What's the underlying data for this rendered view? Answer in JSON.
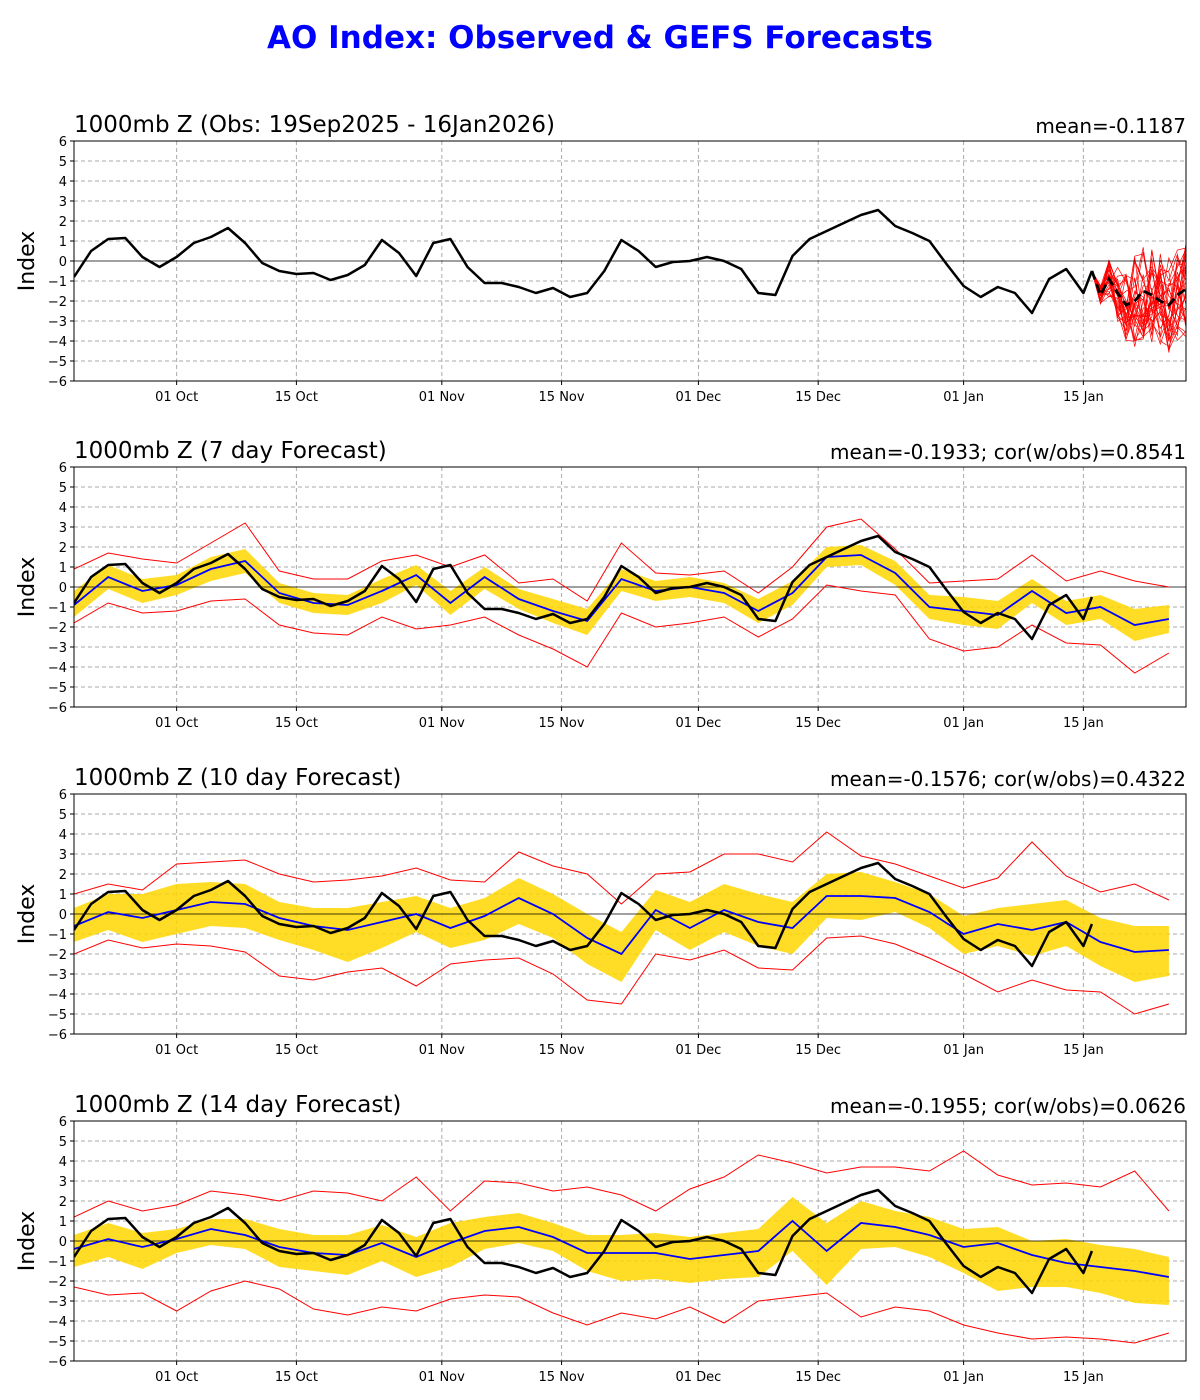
{
  "title": "AO Index: Observed & GEFS Forecasts",
  "colors": {
    "title": "#0000ff",
    "observed": "#000000",
    "ensemble_mean": "#0000ff",
    "members": "#ff0000",
    "spread": "#ffd700",
    "grid": "#aaaaaa"
  },
  "chart_data": [
    {
      "type": "line",
      "title": "1000mb Z (Obs: 19Sep2025 - 16Jan2026)",
      "stats": "mean=-0.1187",
      "ylabel": "Index",
      "ylim": [
        -6,
        6
      ],
      "yticks": [
        -6,
        -5,
        -4,
        -3,
        -2,
        -1,
        0,
        1,
        2,
        3,
        4,
        5,
        6
      ],
      "xlim": [
        "2025-09-19",
        "2026-01-27"
      ],
      "xticks": [
        "01 Oct",
        "15 Oct",
        "01 Nov",
        "15 Nov",
        "01 Dec",
        "15 Dec",
        "01 Jan",
        "15 Jan"
      ],
      "grid": true,
      "series": [
        {
          "role": "observed",
          "x": [
            "2025-09-19",
            "2025-09-21",
            "2025-09-23",
            "2025-09-25",
            "2025-09-27",
            "2025-09-29",
            "2025-10-01",
            "2025-10-03",
            "2025-10-05",
            "2025-10-07",
            "2025-10-09",
            "2025-10-11",
            "2025-10-13",
            "2025-10-15",
            "2025-10-17",
            "2025-10-19",
            "2025-10-21",
            "2025-10-23",
            "2025-10-25",
            "2025-10-27",
            "2025-10-29",
            "2025-10-31",
            "2025-11-02",
            "2025-11-04",
            "2025-11-06",
            "2025-11-08",
            "2025-11-10",
            "2025-11-12",
            "2025-11-14",
            "2025-11-16",
            "2025-11-18",
            "2025-11-20",
            "2025-11-22",
            "2025-11-24",
            "2025-11-26",
            "2025-11-28",
            "2025-11-30",
            "2025-12-02",
            "2025-12-04",
            "2025-12-06",
            "2025-12-08",
            "2025-12-10",
            "2025-12-12",
            "2025-12-14",
            "2025-12-16",
            "2025-12-18",
            "2025-12-20",
            "2025-12-22",
            "2025-12-24",
            "2025-12-26",
            "2025-12-28",
            "2025-12-30",
            "2026-01-01",
            "2026-01-03",
            "2026-01-05",
            "2026-01-07",
            "2026-01-09",
            "2026-01-11",
            "2026-01-13",
            "2026-01-15",
            "2026-01-16"
          ],
          "y": [
            -0.8,
            0.5,
            1.1,
            1.15,
            0.2,
            -0.3,
            0.2,
            0.9,
            1.2,
            1.65,
            0.9,
            -0.1,
            -0.5,
            -0.65,
            -0.6,
            -0.95,
            -0.7,
            -0.2,
            1.05,
            0.4,
            -0.75,
            0.9,
            1.1,
            -0.3,
            -1.1,
            -1.1,
            -1.3,
            -1.6,
            -1.35,
            -1.8,
            -1.6,
            -0.5,
            1.05,
            0.5,
            -0.3,
            -0.05,
            0.0,
            0.2,
            0.0,
            -0.4,
            -1.6,
            -1.7,
            0.25,
            1.1,
            1.5,
            1.9,
            2.3,
            2.55,
            1.75,
            1.4,
            1.0,
            -0.15,
            -1.25,
            -1.8,
            -1.3,
            -1.6,
            -2.6,
            -0.9,
            -0.4,
            -1.6,
            -0.5
          ]
        },
        {
          "role": "forecast-mean",
          "x": [
            "2026-01-16",
            "2026-01-17",
            "2026-01-18",
            "2026-01-19",
            "2026-01-20",
            "2026-01-21",
            "2026-01-22",
            "2026-01-23",
            "2026-01-24",
            "2026-01-25",
            "2026-01-26",
            "2026-01-27"
          ],
          "y": [
            -0.5,
            -1.7,
            -0.9,
            -1.6,
            -2.2,
            -2.0,
            -1.5,
            -1.7,
            -2.0,
            -2.2,
            -1.7,
            -1.4
          ]
        }
      ],
      "members": {
        "count": 30,
        "start": "2026-01-16",
        "y_range": [
          -5.0,
          1.1
        ]
      }
    },
    {
      "type": "line",
      "title": "1000mb Z (7 day Forecast)",
      "stats": "mean=-0.1933; cor(w/obs)=0.8541",
      "ylabel": "Index",
      "ylim": [
        -6,
        6
      ],
      "yticks": [
        -6,
        -5,
        -4,
        -3,
        -2,
        -1,
        0,
        1,
        2,
        3,
        4,
        5,
        6
      ],
      "xlim": [
        "2025-09-19",
        "2026-01-27"
      ],
      "xticks": [
        "01 Oct",
        "15 Oct",
        "01 Nov",
        "15 Nov",
        "01 Dec",
        "15 Dec",
        "01 Jan",
        "15 Jan"
      ],
      "grid": true,
      "x": [
        "2025-09-19",
        "2025-09-23",
        "2025-09-27",
        "2025-10-01",
        "2025-10-05",
        "2025-10-09",
        "2025-10-13",
        "2025-10-17",
        "2025-10-21",
        "2025-10-25",
        "2025-10-29",
        "2025-11-02",
        "2025-11-06",
        "2025-11-10",
        "2025-11-14",
        "2025-11-18",
        "2025-11-22",
        "2025-11-26",
        "2025-11-30",
        "2025-12-04",
        "2025-12-08",
        "2025-12-12",
        "2025-12-16",
        "2025-12-20",
        "2025-12-24",
        "2025-12-28",
        "2026-01-01",
        "2026-01-05",
        "2026-01-09",
        "2026-01-13",
        "2026-01-17",
        "2026-01-21",
        "2026-01-25"
      ],
      "series": [
        {
          "role": "ensemble-mean",
          "y": [
            -0.9,
            0.5,
            -0.2,
            0.1,
            0.9,
            1.3,
            -0.3,
            -0.8,
            -0.9,
            -0.2,
            0.6,
            -0.8,
            0.5,
            -0.6,
            -1.2,
            -1.7,
            0.4,
            -0.2,
            0.0,
            -0.3,
            -1.2,
            -0.3,
            1.5,
            1.6,
            0.7,
            -1.0,
            -1.2,
            -1.4,
            -0.2,
            -1.3,
            -1.0,
            -1.9,
            -1.6
          ]
        },
        {
          "role": "upper-member",
          "y": [
            0.9,
            1.7,
            1.4,
            1.2,
            2.2,
            3.2,
            0.8,
            0.4,
            0.4,
            1.3,
            1.6,
            1.0,
            1.6,
            0.2,
            0.4,
            -0.7,
            2.2,
            0.7,
            0.6,
            0.8,
            -0.3,
            1.0,
            3.0,
            3.4,
            1.9,
            0.2,
            0.3,
            0.4,
            1.6,
            0.3,
            0.8,
            0.3,
            0.0
          ]
        },
        {
          "role": "lower-member",
          "y": [
            -1.8,
            -0.8,
            -1.3,
            -1.2,
            -0.7,
            -0.6,
            -1.9,
            -2.3,
            -2.4,
            -1.5,
            -2.1,
            -1.9,
            -1.5,
            -2.4,
            -3.1,
            -4.0,
            -1.3,
            -2.0,
            -1.8,
            -1.5,
            -2.5,
            -1.6,
            0.1,
            -0.2,
            -0.4,
            -2.6,
            -3.2,
            -3.0,
            -1.9,
            -2.8,
            -2.9,
            -4.3,
            -3.3
          ]
        },
        {
          "role": "spread-upper",
          "y": [
            -0.2,
            1.1,
            0.4,
            0.6,
            1.5,
            1.9,
            0.2,
            -0.3,
            -0.4,
            0.4,
            1.1,
            -0.2,
            1.0,
            -0.1,
            -0.6,
            -1.1,
            0.9,
            0.3,
            0.5,
            0.2,
            -0.6,
            0.3,
            2.0,
            2.1,
            1.3,
            -0.4,
            -0.5,
            -0.7,
            0.4,
            -0.7,
            -0.4,
            -1.1,
            -0.9
          ]
        },
        {
          "role": "spread-lower",
          "y": [
            -1.5,
            -0.1,
            -0.8,
            -0.4,
            0.3,
            0.7,
            -0.8,
            -1.3,
            -1.4,
            -0.8,
            0.1,
            -1.4,
            -0.1,
            -1.1,
            -1.8,
            -2.4,
            -0.2,
            -0.7,
            -0.5,
            -0.8,
            -1.8,
            -0.9,
            1.0,
            1.1,
            0.1,
            -1.6,
            -1.9,
            -2.1,
            -0.8,
            -1.9,
            -1.6,
            -2.7,
            -2.3
          ]
        }
      ]
    },
    {
      "type": "line",
      "title": "1000mb Z (10 day Forecast)",
      "stats": "mean=-0.1576; cor(w/obs)=0.4322",
      "ylabel": "Index",
      "ylim": [
        -6,
        6
      ],
      "yticks": [
        -6,
        -5,
        -4,
        -3,
        -2,
        -1,
        0,
        1,
        2,
        3,
        4,
        5,
        6
      ],
      "xlim": [
        "2025-09-19",
        "2026-01-27"
      ],
      "xticks": [
        "01 Oct",
        "15 Oct",
        "01 Nov",
        "15 Nov",
        "01 Dec",
        "15 Dec",
        "01 Jan",
        "15 Jan"
      ],
      "grid": true,
      "x": [
        "2025-09-19",
        "2025-09-23",
        "2025-09-27",
        "2025-10-01",
        "2025-10-05",
        "2025-10-09",
        "2025-10-13",
        "2025-10-17",
        "2025-10-21",
        "2025-10-25",
        "2025-10-29",
        "2025-11-02",
        "2025-11-06",
        "2025-11-10",
        "2025-11-14",
        "2025-11-18",
        "2025-11-22",
        "2025-11-26",
        "2025-11-30",
        "2025-12-04",
        "2025-12-08",
        "2025-12-12",
        "2025-12-16",
        "2025-12-20",
        "2025-12-24",
        "2025-12-28",
        "2026-01-01",
        "2026-01-05",
        "2026-01-09",
        "2026-01-13",
        "2026-01-17",
        "2026-01-21",
        "2026-01-25"
      ],
      "series": [
        {
          "role": "ensemble-mean",
          "y": [
            -0.6,
            0.1,
            -0.2,
            0.2,
            0.6,
            0.5,
            -0.2,
            -0.6,
            -0.8,
            -0.4,
            0.0,
            -0.7,
            -0.1,
            0.8,
            0.0,
            -1.2,
            -2.0,
            0.2,
            -0.7,
            0.2,
            -0.4,
            -0.7,
            0.9,
            0.9,
            0.8,
            0.1,
            -1.0,
            -0.5,
            -0.8,
            -0.4,
            -1.4,
            -1.9,
            -1.8
          ]
        },
        {
          "role": "upper-member",
          "y": [
            1.0,
            1.5,
            1.2,
            2.5,
            2.6,
            2.7,
            2.0,
            1.6,
            1.7,
            1.9,
            2.3,
            1.7,
            1.6,
            3.1,
            2.4,
            2.0,
            0.5,
            2.0,
            2.1,
            3.0,
            3.0,
            2.6,
            4.1,
            2.9,
            2.5,
            1.9,
            1.3,
            1.8,
            3.6,
            1.9,
            1.1,
            1.5,
            0.7
          ]
        },
        {
          "role": "lower-member",
          "y": [
            -2.0,
            -1.3,
            -1.7,
            -1.5,
            -1.6,
            -1.9,
            -3.1,
            -3.3,
            -2.9,
            -2.7,
            -3.6,
            -2.5,
            -2.3,
            -2.2,
            -3.0,
            -4.3,
            -4.5,
            -2.0,
            -2.3,
            -1.8,
            -2.7,
            -2.8,
            -1.2,
            -1.1,
            -1.5,
            -2.2,
            -3.0,
            -3.9,
            -3.3,
            -3.8,
            -3.9,
            -5.0,
            -4.5
          ]
        },
        {
          "role": "spread-upper",
          "y": [
            0.3,
            1.0,
            1.0,
            1.5,
            1.6,
            1.5,
            0.6,
            0.3,
            0.3,
            0.6,
            0.9,
            0.3,
            0.8,
            1.8,
            1.0,
            0.0,
            -0.9,
            1.2,
            0.6,
            1.5,
            1.0,
            0.6,
            2.0,
            2.1,
            1.6,
            1.0,
            -0.1,
            0.3,
            0.5,
            0.7,
            -0.2,
            -0.6,
            -0.6
          ]
        },
        {
          "role": "spread-lower",
          "y": [
            -1.4,
            -0.8,
            -1.4,
            -1.0,
            -0.6,
            -0.7,
            -1.3,
            -1.8,
            -2.4,
            -1.7,
            -0.9,
            -1.7,
            -1.3,
            -0.5,
            -1.2,
            -2.5,
            -3.4,
            -0.8,
            -1.8,
            -0.9,
            -1.6,
            -2.0,
            -0.2,
            -0.3,
            0.1,
            -0.7,
            -2.0,
            -1.6,
            -2.1,
            -1.6,
            -2.6,
            -3.4,
            -3.1
          ]
        }
      ]
    },
    {
      "type": "line",
      "title": "1000mb Z (14 day Forecast)",
      "stats": "mean=-0.1955; cor(w/obs)=0.0626",
      "ylabel": "Index",
      "ylim": [
        -6,
        6
      ],
      "yticks": [
        -6,
        -5,
        -4,
        -3,
        -2,
        -1,
        0,
        1,
        2,
        3,
        4,
        5,
        6
      ],
      "xlim": [
        "2025-09-19",
        "2026-01-27"
      ],
      "xticks": [
        "01 Oct",
        "15 Oct",
        "01 Nov",
        "15 Nov",
        "01 Dec",
        "15 Dec",
        "01 Jan",
        "15 Jan"
      ],
      "grid": true,
      "x": [
        "2025-09-19",
        "2025-09-23",
        "2025-09-27",
        "2025-10-01",
        "2025-10-05",
        "2025-10-09",
        "2025-10-13",
        "2025-10-17",
        "2025-10-21",
        "2025-10-25",
        "2025-10-29",
        "2025-11-02",
        "2025-11-06",
        "2025-11-10",
        "2025-11-14",
        "2025-11-18",
        "2025-11-22",
        "2025-11-26",
        "2025-11-30",
        "2025-12-04",
        "2025-12-08",
        "2025-12-12",
        "2025-12-16",
        "2025-12-20",
        "2025-12-24",
        "2025-12-28",
        "2026-01-01",
        "2026-01-05",
        "2026-01-09",
        "2026-01-13",
        "2026-01-17",
        "2026-01-21",
        "2026-01-25"
      ],
      "series": [
        {
          "role": "ensemble-mean",
          "y": [
            -0.4,
            0.1,
            -0.3,
            0.1,
            0.6,
            0.3,
            -0.3,
            -0.6,
            -0.7,
            -0.1,
            -0.8,
            -0.1,
            0.5,
            0.7,
            0.2,
            -0.6,
            -0.6,
            -0.6,
            -0.9,
            -0.7,
            -0.5,
            1.0,
            -0.5,
            0.9,
            0.7,
            0.3,
            -0.3,
            -0.1,
            -0.7,
            -1.1,
            -1.3,
            -1.5,
            -1.8
          ]
        },
        {
          "role": "upper-member",
          "y": [
            1.2,
            2.0,
            1.5,
            1.8,
            2.5,
            2.3,
            2.0,
            2.5,
            2.4,
            2.0,
            3.2,
            1.5,
            3.0,
            2.9,
            2.5,
            2.7,
            2.3,
            1.5,
            2.6,
            3.2,
            4.3,
            3.9,
            3.4,
            3.7,
            3.7,
            3.5,
            4.5,
            3.3,
            2.8,
            2.9,
            2.7,
            3.5,
            1.5
          ]
        },
        {
          "role": "lower-member",
          "y": [
            -2.3,
            -2.7,
            -2.6,
            -3.5,
            -2.5,
            -2.0,
            -2.4,
            -3.4,
            -3.7,
            -3.3,
            -3.5,
            -2.9,
            -2.7,
            -2.8,
            -3.6,
            -4.2,
            -3.6,
            -3.9,
            -3.3,
            -4.1,
            -3.0,
            -2.8,
            -2.6,
            -3.8,
            -3.3,
            -3.5,
            -4.2,
            -4.6,
            -4.9,
            -4.8,
            -4.9,
            -5.1,
            -4.6
          ]
        },
        {
          "role": "spread-upper",
          "y": [
            0.3,
            0.9,
            0.4,
            0.6,
            1.1,
            1.1,
            0.6,
            0.3,
            0.3,
            0.8,
            0.2,
            0.9,
            1.2,
            1.4,
            0.9,
            0.3,
            0.3,
            0.4,
            0.2,
            0.4,
            0.6,
            2.2,
            0.9,
            2.0,
            1.5,
            1.2,
            0.6,
            0.7,
            0.0,
            0.1,
            -0.2,
            -0.4,
            -0.8
          ]
        },
        {
          "role": "spread-lower",
          "y": [
            -1.3,
            -0.8,
            -1.4,
            -0.6,
            -0.2,
            -0.4,
            -1.3,
            -1.5,
            -1.7,
            -1.0,
            -1.8,
            -1.3,
            -0.4,
            -0.1,
            -0.5,
            -1.5,
            -2.0,
            -1.9,
            -2.1,
            -1.9,
            -1.8,
            -0.5,
            -2.2,
            -0.4,
            -0.3,
            -0.8,
            -1.6,
            -2.5,
            -2.3,
            -2.3,
            -2.6,
            -3.1,
            -3.2
          ]
        }
      ]
    }
  ]
}
